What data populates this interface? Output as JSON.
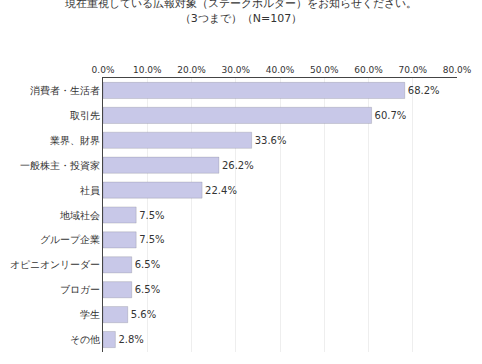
{
  "chart_data": {
    "type": "bar",
    "orientation": "horizontal",
    "title": "現在重視している広報対象（ステークホルダー）をお知らせください。",
    "subtitle": "（3つまで）（N=107）",
    "categories": [
      "消費者・生活者",
      "取引先",
      "業界、財界",
      "一般株主・投資家",
      "社員",
      "地域社会",
      "グループ企業",
      "オピニオンリーダー",
      "ブロガー",
      "学生",
      "その他"
    ],
    "values": [
      68.2,
      60.7,
      33.6,
      26.2,
      22.4,
      7.5,
      7.5,
      6.5,
      6.5,
      5.6,
      2.8
    ],
    "value_labels": [
      "68.2%",
      "60.7%",
      "33.6%",
      "26.2%",
      "22.4%",
      "7.5%",
      "7.5%",
      "6.5%",
      "6.5%",
      "5.6%",
      "2.8%"
    ],
    "data_labels": true,
    "color": "#c8c8e8",
    "xlim": [
      0,
      80
    ],
    "xticks": [
      {
        "value": 0,
        "label": "0.0%"
      },
      {
        "value": 10,
        "label": "10.0%"
      },
      {
        "value": 20,
        "label": "20.0%"
      },
      {
        "value": 30,
        "label": "30.0%"
      },
      {
        "value": 40,
        "label": "40.0%"
      },
      {
        "value": 50,
        "label": "50.0%"
      },
      {
        "value": 60,
        "label": "60.0%"
      },
      {
        "value": 70,
        "label": "70.0%"
      },
      {
        "value": 80,
        "label": "80.0%"
      }
    ],
    "grid": true
  }
}
